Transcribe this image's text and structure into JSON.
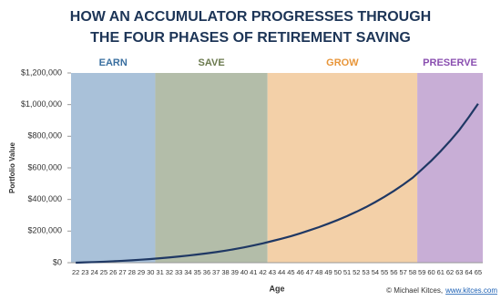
{
  "chart_data": {
    "type": "line",
    "title": [
      "HOW AN ACCUMULATOR PROGRESSES THROUGH",
      "THE FOUR PHASES OF RETIREMENT SAVING"
    ],
    "y_label": "Portfolio Value",
    "x_label": "Age",
    "categories": [
      "22",
      "23",
      "24",
      "25",
      "26",
      "27",
      "28",
      "29",
      "30",
      "31",
      "32",
      "33",
      "34",
      "35",
      "36",
      "37",
      "38",
      "39",
      "40",
      "41",
      "42",
      "43",
      "44",
      "45",
      "46",
      "47",
      "48",
      "49",
      "50",
      "51",
      "52",
      "53",
      "54",
      "55",
      "56",
      "57",
      "58",
      "59",
      "60",
      "61",
      "62",
      "63",
      "64",
      "65"
    ],
    "series": [
      {
        "name": "Portfolio Value",
        "color": "#1f3864",
        "values": [
          0,
          2000,
          4000,
          6000,
          9000,
          12000,
          15000,
          19000,
          23000,
          28000,
          33000,
          39000,
          45000,
          52000,
          59000,
          67000,
          76000,
          86000,
          97000,
          109000,
          122000,
          137000,
          152000,
          168000,
          186000,
          205000,
          225000,
          247000,
          270000,
          295000,
          322000,
          351000,
          383000,
          417000,
          454000,
          494000,
          537000,
          590000,
          645000,
          705000,
          770000,
          840000,
          920000,
          1005000
        ]
      }
    ],
    "phases": [
      {
        "name": "EARN",
        "first": "22",
        "last": "30",
        "color": "#a9c1d9",
        "label_color": "#3a6fa0"
      },
      {
        "name": "SAVE",
        "first": "31",
        "last": "42",
        "color": "#b3bda9",
        "label_color": "#6b7a4e"
      },
      {
        "name": "GROW",
        "first": "43",
        "last": "58",
        "color": "#f3d0a8",
        "label_color": "#e8963a"
      },
      {
        "name": "PRESERVE",
        "first": "59",
        "last": "65",
        "color": "#c8aed6",
        "label_color": "#8a4fb0"
      }
    ],
    "ylim": [
      0,
      1200000
    ],
    "yticks": [
      {
        "value": 0,
        "label": "$0"
      },
      {
        "value": 200000,
        "label": "$200,000"
      },
      {
        "value": 400000,
        "label": "$400,000"
      },
      {
        "value": 600000,
        "label": "$600,000"
      },
      {
        "value": 800000,
        "label": "$800,000"
      },
      {
        "value": 1000000,
        "label": "$1,000,000"
      },
      {
        "value": 1200000,
        "label": "$1,200,000"
      }
    ],
    "footer": {
      "credit": "© Michael Kitces,",
      "link": "www.kitces.com"
    }
  }
}
